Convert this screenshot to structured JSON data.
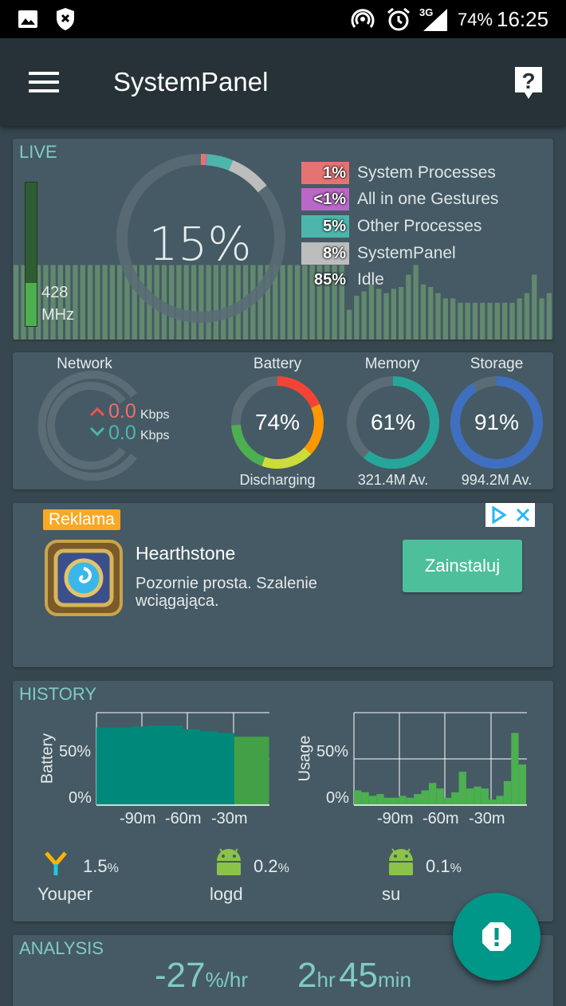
{
  "status_bar": {
    "battery": "74%",
    "time": "16:25",
    "network_type": "3G",
    "icons": [
      "image-icon",
      "shield-x-icon",
      "hotspot-icon",
      "alarm-icon",
      "signal-icon",
      "battery-icon"
    ]
  },
  "app_bar": {
    "title": "SystemPanel",
    "menu_icon": "menu-icon",
    "help_icon": "help-icon"
  },
  "live": {
    "label": "LIVE",
    "cpu_percent": "15%",
    "frequency_value": "428",
    "frequency_unit": "MHz",
    "frequency_level": 0.3,
    "legend": [
      {
        "value": "1%",
        "label": "System Processes",
        "color": "#e57373"
      },
      {
        "value": "<1%",
        "label": "All in one Gestures",
        "color": "#ba68c8"
      },
      {
        "value": "5%",
        "label": "Other Processes",
        "color": "#4db6ac"
      },
      {
        "value": "8%",
        "label": "SystemPanel",
        "color": "#bdbdbd"
      },
      {
        "value": "85%",
        "label": "Idle",
        "color": "#455a64"
      }
    ],
    "cpu_history": [
      0.85,
      0.85,
      0.85,
      0.85,
      0.85,
      0.85,
      0.85,
      0.85,
      0.85,
      0.85,
      0.85,
      0.85,
      0.85,
      0.85,
      0.85,
      0.85,
      0.85,
      0.85,
      0.85,
      0.85,
      0.85,
      0.85,
      0.85,
      0.85,
      0.85,
      0.85,
      0.85,
      0.85,
      0.85,
      0.85,
      0.85,
      0.85,
      0.85,
      0.85,
      0.85,
      0.85,
      0.85,
      0.85,
      0.85,
      0.85,
      0.85,
      0.85,
      0.85,
      0.85,
      0.85,
      0.34,
      0.5,
      0.55,
      0.63,
      0.58,
      0.53,
      0.58,
      0.6,
      0.74,
      0.85,
      0.63,
      0.6,
      0.53,
      0.47,
      0.47,
      0.42,
      0.42,
      0.42,
      0.42,
      0.42,
      0.42,
      0.42,
      0.42,
      0.47,
      0.53,
      0.74,
      0.47,
      0.53
    ]
  },
  "gauges": {
    "network": {
      "title": "Network",
      "upload": "0.0",
      "download": "0.0",
      "unit": "Kbps"
    },
    "battery": {
      "title": "Battery",
      "value": "74%",
      "subtitle": "Discharging",
      "level": 0.74
    },
    "memory": {
      "title": "Memory",
      "value": "61%",
      "subtitle": "321.4M Av.",
      "level": 0.61
    },
    "storage": {
      "title": "Storage",
      "value": "91%",
      "subtitle": "994.2M Av.",
      "level": 0.91
    }
  },
  "ad": {
    "badge": "Reklama",
    "title": "Hearthstone",
    "description_line1": "Pozornie prosta. Szalenie",
    "description_line2": "wciągająca.",
    "button": "Zainstaluj",
    "icons": [
      "adchoices-icon",
      "close-icon"
    ]
  },
  "history": {
    "label": "HISTORY",
    "battery_chart": {
      "ylabel": "Battery",
      "yticks": [
        "50%",
        "0%"
      ],
      "xticks": [
        "-90m",
        "-60m",
        "-30m"
      ],
      "values": [
        0.84,
        0.84,
        0.85,
        0.86,
        0.86,
        0.82,
        0.8,
        0.78,
        0.74,
        0.74
      ]
    },
    "usage_chart": {
      "ylabel": "Usage",
      "yticks": [
        "50%",
        "0%"
      ],
      "xticks": [
        "-90m",
        "-60m",
        "-30m"
      ],
      "values": [
        0.16,
        0.14,
        0.1,
        0.12,
        0.08,
        0.08,
        0.1,
        0.08,
        0.12,
        0.16,
        0.24,
        0.18,
        0.08,
        0.14,
        0.36,
        0.18,
        0.2,
        0.18,
        0.06,
        0.1,
        0.26,
        0.78,
        0.44
      ]
    },
    "processes": [
      {
        "name": "Youper",
        "value": "1.5",
        "unit": "%",
        "icon": "youper-icon"
      },
      {
        "name": "logd",
        "value": "0.2",
        "unit": "%",
        "icon": "android-icon"
      },
      {
        "name": "su",
        "value": "0.1",
        "unit": "%",
        "icon": "android-icon"
      }
    ]
  },
  "analysis": {
    "label": "ANALYSIS",
    "rate_value": "-27",
    "rate_unit": "%/hr",
    "hours": "2",
    "hours_unit": "hr",
    "minutes": "45",
    "minutes_unit": "min"
  },
  "fab": {
    "icon": "alert-icon"
  }
}
